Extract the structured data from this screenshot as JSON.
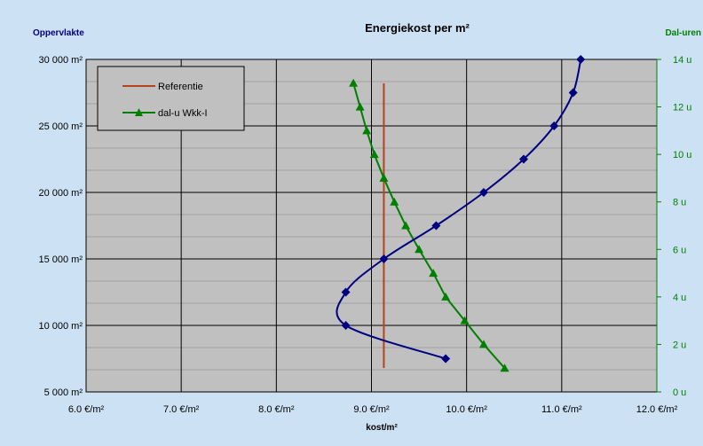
{
  "chart_data": {
    "type": "line",
    "title": "Energiekost per m²",
    "xlabel": "kost/m²",
    "ylabel": "Oppervlakte",
    "y2label": "Dal-uren",
    "xlim": [
      6.0,
      12.0
    ],
    "ylim": [
      5000,
      30000
    ],
    "y2lim": [
      0,
      14
    ],
    "x_ticks": [
      "6.0 €/m²",
      "7.0 €/m²",
      "8.0 €/m²",
      "9.0 €/m²",
      "10.0 €/m²",
      "11.0 €/m²",
      "12.0 €/m²"
    ],
    "y_ticks": [
      "5 000 m²",
      "10 000 m²",
      "15 000 m²",
      "20 000 m²",
      "25 000 m²",
      "30 000 m²"
    ],
    "y2_ticks": [
      "0 u",
      "2 u",
      "4 u",
      "6 u",
      "8 u",
      "10 u",
      "12 u",
      "14 u"
    ],
    "grid": true,
    "legend_position": "top-left",
    "colors": {
      "background": "#cce1f3",
      "plot_area": "#c0c0c0",
      "grid": "#000000",
      "title_text": "#000000",
      "left_axis_title": "#000080",
      "right_axis_title": "#008000",
      "right_axis_ticks": "#008000",
      "curve": "#000080",
      "reference": "#b5431c",
      "dal_u": "#008000"
    },
    "series": [
      {
        "name": "Referentie",
        "axis": "left",
        "color": "#b5431c",
        "marker": "none",
        "points": [
          {
            "x": 9.13,
            "y": 6800
          },
          {
            "x": 9.13,
            "y": 28200
          }
        ]
      },
      {
        "name": "dal-u Wkk-I",
        "axis": "right",
        "color": "#008000",
        "marker": "triangle",
        "points": [
          {
            "x": 10.4,
            "y": 1.0
          },
          {
            "x": 10.18,
            "y": 2.0
          },
          {
            "x": 9.98,
            "y": 3.0
          },
          {
            "x": 9.78,
            "y": 4.0
          },
          {
            "x": 9.65,
            "y": 5.0
          },
          {
            "x": 9.5,
            "y": 6.0
          },
          {
            "x": 9.36,
            "y": 7.0
          },
          {
            "x": 9.24,
            "y": 8.0
          },
          {
            "x": 9.13,
            "y": 9.0
          },
          {
            "x": 9.03,
            "y": 10.0
          },
          {
            "x": 8.95,
            "y": 11.0
          },
          {
            "x": 8.88,
            "y": 12.0
          },
          {
            "x": 8.81,
            "y": 13.0
          }
        ]
      },
      {
        "axis": "left",
        "color": "#000080",
        "marker": "diamond",
        "points": [
          {
            "x": 9.78,
            "y": 7500
          },
          {
            "x": 8.73,
            "y": 10000
          },
          {
            "x": 8.73,
            "y": 12500
          },
          {
            "x": 9.13,
            "y": 15000
          },
          {
            "x": 9.68,
            "y": 17500
          },
          {
            "x": 10.18,
            "y": 20000
          },
          {
            "x": 10.6,
            "y": 22500
          },
          {
            "x": 10.92,
            "y": 25000
          },
          {
            "x": 11.12,
            "y": 27500
          },
          {
            "x": 11.2,
            "y": 30000
          }
        ]
      }
    ]
  }
}
